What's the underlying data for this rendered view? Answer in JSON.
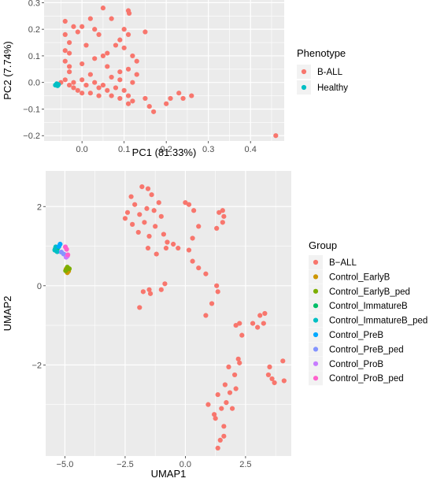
{
  "chart_data": [
    {
      "type": "scatter",
      "xlabel": "PC1 (81.33%)",
      "ylabel": "PC2 (7.74%)",
      "xlim": [
        -0.09,
        0.48
      ],
      "ylim": [
        -0.22,
        0.31
      ],
      "xticks": [
        0.0,
        0.1,
        0.2,
        0.3,
        0.4
      ],
      "xtick_labels": [
        "0.0",
        "0.1",
        "0.2",
        "0.3",
        "0.4"
      ],
      "yticks": [
        -0.2,
        -0.1,
        0.0,
        0.1,
        0.2,
        0.3
      ],
      "ytick_labels": [
        "−0.2",
        "−0.1",
        "0.0",
        "0.1",
        "0.2",
        "0.3"
      ],
      "grid": true,
      "legend": {
        "title": "Phenotype",
        "position": "right"
      },
      "series": [
        {
          "name": "B-ALL",
          "color": "#F8766D",
          "points": [
            [
              0.05,
              0.28
            ],
            [
              0.11,
              0.27
            ],
            [
              0.112,
              0.26
            ],
            [
              0.02,
              0.24
            ],
            [
              0.07,
              0.24
            ],
            [
              -0.04,
              0.23
            ],
            [
              -0.02,
              0.21
            ],
            [
              0.0,
              0.21
            ],
            [
              0.03,
              0.2
            ],
            [
              0.1,
              0.2
            ],
            [
              0.15,
              0.19
            ],
            [
              -0.04,
              0.18
            ],
            [
              -0.01,
              0.19
            ],
            [
              0.04,
              0.18
            ],
            [
              0.11,
              0.18
            ],
            [
              0.09,
              0.16
            ],
            [
              -0.03,
              0.15
            ],
            [
              0.01,
              0.14
            ],
            [
              0.08,
              0.14
            ],
            [
              0.1,
              0.13
            ],
            [
              -0.04,
              0.12
            ],
            [
              -0.03,
              0.11
            ],
            [
              0.05,
              0.1
            ],
            [
              0.12,
              0.1
            ],
            [
              0.13,
              0.08
            ],
            [
              -0.04,
              0.08
            ],
            [
              0.0,
              0.07
            ],
            [
              0.06,
              0.06
            ],
            [
              0.11,
              0.05
            ],
            [
              0.13,
              0.03
            ],
            [
              -0.03,
              0.04
            ],
            [
              0.02,
              0.03
            ],
            [
              0.07,
              0.02
            ],
            [
              0.09,
              0.01
            ],
            [
              0.12,
              0.0
            ],
            [
              -0.05,
              0.0
            ],
            [
              -0.04,
              0.01
            ],
            [
              -0.03,
              -0.01
            ],
            [
              -0.02,
              0.0
            ],
            [
              0.0,
              0.01
            ],
            [
              0.01,
              -0.01
            ],
            [
              0.03,
              0.0
            ],
            [
              0.04,
              -0.02
            ],
            [
              0.05,
              -0.01
            ],
            [
              0.06,
              -0.03
            ],
            [
              0.08,
              -0.02
            ],
            [
              0.1,
              -0.03
            ],
            [
              -0.02,
              -0.02
            ],
            [
              -0.01,
              -0.03
            ],
            [
              0.0,
              -0.04
            ],
            [
              0.02,
              -0.04
            ],
            [
              0.04,
              -0.05
            ],
            [
              0.07,
              -0.05
            ],
            [
              0.09,
              -0.06
            ],
            [
              0.11,
              -0.05
            ],
            [
              0.15,
              -0.06
            ],
            [
              0.16,
              -0.09
            ],
            [
              0.17,
              -0.11
            ],
            [
              0.21,
              -0.06
            ],
            [
              0.23,
              -0.04
            ],
            [
              0.26,
              -0.05
            ],
            [
              0.11,
              -0.08
            ],
            [
              0.2,
              -0.08
            ],
            [
              0.12,
              -0.07
            ],
            [
              0.24,
              -0.06
            ],
            [
              0.46,
              -0.2
            ],
            [
              -0.03,
              0.06
            ],
            [
              0.03,
              0.09
            ],
            [
              0.06,
              0.11
            ],
            [
              0.09,
              0.04
            ]
          ]
        },
        {
          "name": "Healthy",
          "color": "#00BFC4",
          "points": [
            [
              -0.063,
              -0.01
            ],
            [
              -0.06,
              -0.005
            ],
            [
              -0.058,
              -0.012
            ],
            [
              -0.056,
              -0.008
            ]
          ]
        }
      ]
    },
    {
      "type": "scatter",
      "xlabel": "UMAP1",
      "ylabel": "UMAP2",
      "xlim": [
        -5.8,
        4.4
      ],
      "ylim": [
        -4.3,
        2.9
      ],
      "xticks": [
        -5.0,
        -2.5,
        0.0,
        2.5
      ],
      "xtick_labels": [
        "−5.0",
        "−2.5",
        "0.0",
        "2.5"
      ],
      "yticks": [
        -2,
        0,
        2
      ],
      "ytick_labels": [
        "−2",
        "0",
        "2"
      ],
      "grid": true,
      "legend": {
        "title": "Group",
        "position": "right"
      },
      "series": [
        {
          "name": "B−ALL",
          "color": "#F8766D",
          "points": [
            [
              -1.8,
              2.5
            ],
            [
              -1.55,
              2.45
            ],
            [
              -1.4,
              2.3
            ],
            [
              -2.25,
              2.25
            ],
            [
              -2.1,
              2.05
            ],
            [
              -2.4,
              1.85
            ],
            [
              -1.9,
              1.8
            ],
            [
              -1.6,
              1.95
            ],
            [
              -1.3,
              1.9
            ],
            [
              -1.1,
              2.1
            ],
            [
              -2.5,
              1.7
            ],
            [
              -2.2,
              1.55
            ],
            [
              -1.7,
              1.6
            ],
            [
              -1.0,
              1.75
            ],
            [
              -1.25,
              1.5
            ],
            [
              -1.95,
              1.35
            ],
            [
              -1.5,
              1.25
            ],
            [
              -0.9,
              1.3
            ],
            [
              -1.55,
              0.95
            ],
            [
              -1.2,
              0.8
            ],
            [
              -0.75,
              1.1
            ],
            [
              -0.5,
              1.05
            ],
            [
              -0.3,
              0.95
            ],
            [
              -0.8,
              0.95
            ],
            [
              0.0,
              2.1
            ],
            [
              0.15,
              2.05
            ],
            [
              0.35,
              1.9
            ],
            [
              0.55,
              1.5
            ],
            [
              0.3,
              1.2
            ],
            [
              0.15,
              0.9
            ],
            [
              0.3,
              0.62
            ],
            [
              0.55,
              0.45
            ],
            [
              0.85,
              0.3
            ],
            [
              1.4,
              1.85
            ],
            [
              1.6,
              1.75
            ],
            [
              1.3,
              1.45
            ],
            [
              1.55,
              1.6
            ],
            [
              1.55,
              1.9
            ],
            [
              -1.75,
              -0.15
            ],
            [
              -1.45,
              -0.2
            ],
            [
              -1.0,
              -0.1
            ],
            [
              -0.85,
              0.05
            ],
            [
              1.3,
              0.0
            ],
            [
              1.35,
              -0.15
            ],
            [
              -1.5,
              -0.1
            ],
            [
              2.25,
              -0.95
            ],
            [
              2.1,
              -1.0
            ],
            [
              2.35,
              -1.25
            ],
            [
              2.8,
              -0.95
            ],
            [
              3.1,
              -0.75
            ],
            [
              3.3,
              -0.7
            ],
            [
              3.25,
              -0.95
            ],
            [
              3.0,
              -1.05
            ],
            [
              1.8,
              -2.05
            ],
            [
              1.65,
              -2.5
            ],
            [
              2.05,
              -2.25
            ],
            [
              1.85,
              -2.7
            ],
            [
              1.7,
              -2.95
            ],
            [
              1.95,
              -3.1
            ],
            [
              1.35,
              -2.75
            ],
            [
              1.25,
              -3.35
            ],
            [
              1.6,
              -3.55
            ],
            [
              1.45,
              -3.9
            ],
            [
              1.35,
              -4.1
            ],
            [
              0.95,
              -3.0
            ],
            [
              1.5,
              -3.1
            ],
            [
              2.1,
              -2.6
            ],
            [
              3.5,
              -2.05
            ],
            [
              3.6,
              -2.35
            ],
            [
              3.7,
              -2.45
            ],
            [
              4.05,
              -1.9
            ],
            [
              4.1,
              -2.4
            ],
            [
              3.45,
              -2.25
            ],
            [
              2.25,
              -1.95
            ],
            [
              1.6,
              -3.8
            ],
            [
              1.2,
              -3.25
            ],
            [
              2.2,
              -1.85
            ],
            [
              -1.9,
              -0.55
            ],
            [
              0.85,
              -0.75
            ],
            [
              1.1,
              -0.45
            ]
          ]
        },
        {
          "name": "Control_EarlyB",
          "color": "#CD9600",
          "points": [
            [
              -4.85,
              0.37
            ],
            [
              -4.95,
              0.42
            ],
            [
              -4.9,
              0.33
            ]
          ]
        },
        {
          "name": "Control_EarlyB_ped",
          "color": "#7CAE00",
          "points": [
            [
              -4.9,
              0.47
            ],
            [
              -4.82,
              0.43
            ],
            [
              -4.97,
              0.38
            ]
          ]
        },
        {
          "name": "Control_ImmatureB",
          "color": "#00BE67",
          "points": [
            [
              -5.35,
              0.88
            ],
            [
              -5.4,
              0.93
            ],
            [
              -5.3,
              0.95
            ]
          ]
        },
        {
          "name": "Control_ImmatureB_ped",
          "color": "#00BFC4",
          "points": [
            [
              -5.38,
              0.98
            ],
            [
              -5.32,
              0.86
            ],
            [
              -5.42,
              0.9
            ]
          ]
        },
        {
          "name": "Control_PreB",
          "color": "#00A9FF",
          "points": [
            [
              -5.2,
              1.05
            ],
            [
              -5.25,
              0.99
            ]
          ]
        },
        {
          "name": "Control_PreB_ped",
          "color": "#8494FF",
          "points": [
            [
              -5.15,
              0.85
            ],
            [
              -5.05,
              0.8
            ]
          ]
        },
        {
          "name": "Control_ProB",
          "color": "#C77CFF",
          "points": [
            [
              -4.9,
              0.75
            ],
            [
              -4.95,
              0.72
            ]
          ]
        },
        {
          "name": "Control_ProB_ped",
          "color": "#FF61CC",
          "points": [
            [
              -4.98,
              0.98
            ],
            [
              -4.93,
              0.92
            ],
            [
              -4.88,
              0.78
            ]
          ]
        }
      ]
    }
  ]
}
